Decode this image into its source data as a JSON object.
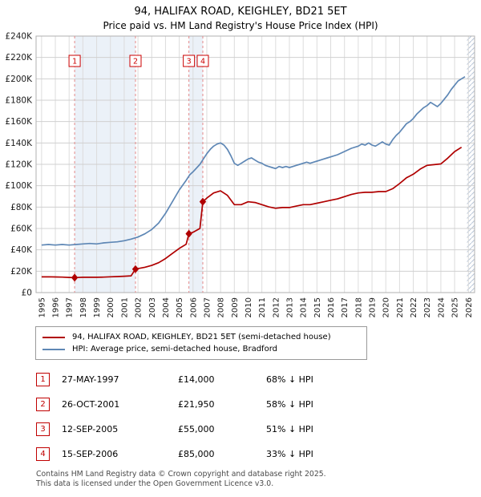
{
  "title": "94, HALIFAX ROAD, KEIGHLEY, BD21 5ET",
  "subtitle": "Price paid vs. HM Land Registry's House Price Index (HPI)",
  "chart_data": {
    "type": "line",
    "x_range": [
      1994.6,
      2026.45
    ],
    "y_range": [
      0,
      240000
    ],
    "x_ticks": [
      1995,
      1996,
      1997,
      1998,
      1999,
      2000,
      2001,
      2002,
      2003,
      2004,
      2005,
      2006,
      2007,
      2008,
      2009,
      2010,
      2011,
      2012,
      2013,
      2014,
      2015,
      2016,
      2017,
      2018,
      2019,
      2020,
      2021,
      2022,
      2023,
      2024,
      2025,
      2026
    ],
    "y_ticks": [
      0,
      20000,
      40000,
      60000,
      80000,
      100000,
      120000,
      140000,
      160000,
      180000,
      200000,
      220000,
      240000
    ],
    "y_tick_labels": [
      "£0",
      "£20K",
      "£40K",
      "£60K",
      "£80K",
      "£100K",
      "£120K",
      "£140K",
      "£160K",
      "£180K",
      "£200K",
      "£220K",
      "£240K"
    ],
    "band_color": "#dbe6f3",
    "hatch_start": 2025.9,
    "grid": true,
    "legend_position": "bottom",
    "series": [
      {
        "id": "series-line-property",
        "name": "94, HALIFAX ROAD, KEIGHLEY, BD21 5ET (semi-detached house)",
        "color": "#b00000",
        "x": [
          1995,
          1995.5,
          1996,
          1996.5,
          1997,
          1997.4,
          1998,
          1998.5,
          1999,
          1999.5,
          2000,
          2000.5,
          2001,
          2001.5,
          2001.82,
          2002,
          2002.5,
          2003,
          2003.5,
          2004,
          2004.5,
          2005,
          2005.5,
          2005.7,
          2006,
          2006.5,
          2006.71,
          2007,
          2007.5,
          2008,
          2008.5,
          2009,
          2009.5,
          2010,
          2010.5,
          2011,
          2011.5,
          2012,
          2012.5,
          2013,
          2013.5,
          2014,
          2014.5,
          2015,
          2015.5,
          2016,
          2016.5,
          2017,
          2017.5,
          2018,
          2018.5,
          2019,
          2019.5,
          2020,
          2020.5,
          2021,
          2021.5,
          2022,
          2022.5,
          2023,
          2023.5,
          2024,
          2024.5,
          2025,
          2025.5
        ],
        "y": [
          14700,
          14800,
          14600,
          14500,
          14200,
          14000,
          14300,
          14400,
          14300,
          14500,
          14800,
          15000,
          15300,
          15700,
          21950,
          22400,
          23700,
          25400,
          28000,
          31800,
          36600,
          41300,
          45200,
          55000,
          56500,
          60000,
          85000,
          88400,
          93200,
          95200,
          91000,
          82300,
          82300,
          85000,
          84300,
          82300,
          80200,
          78900,
          79600,
          79600,
          80900,
          82300,
          82300,
          83600,
          85000,
          86400,
          87700,
          89800,
          91800,
          93200,
          93800,
          93800,
          94500,
          94500,
          97200,
          102000,
          107400,
          110800,
          115600,
          119000,
          119700,
          120400,
          125800,
          131900,
          136000
        ]
      },
      {
        "id": "series-line-hpi",
        "name": "HPI: Average price, semi-detached house, Bradford",
        "color": "#5e87b5",
        "x": [
          1995,
          1995.5,
          1996,
          1996.5,
          1997,
          1997.5,
          1998,
          1998.5,
          1999,
          1999.5,
          2000,
          2000.5,
          2001,
          2001.5,
          2002,
          2002.5,
          2003,
          2003.5,
          2004,
          2004.5,
          2005,
          2005.5,
          2005.75,
          2006,
          2006.5,
          2006.75,
          2007,
          2007.25,
          2007.5,
          2007.75,
          2008,
          2008.25,
          2008.5,
          2008.75,
          2009,
          2009.25,
          2009.5,
          2009.75,
          2010,
          2010.25,
          2010.5,
          2010.75,
          2011,
          2011.25,
          2011.5,
          2011.75,
          2012,
          2012.25,
          2012.5,
          2012.75,
          2013,
          2013.25,
          2013.5,
          2013.75,
          2014,
          2014.25,
          2014.5,
          2014.75,
          2015,
          2015.25,
          2015.5,
          2015.75,
          2016,
          2016.5,
          2017,
          2017.5,
          2018,
          2018.25,
          2018.5,
          2018.75,
          2019,
          2019.25,
          2019.5,
          2019.75,
          2020,
          2020.25,
          2020.5,
          2020.75,
          2021,
          2021.25,
          2021.5,
          2021.75,
          2022,
          2022.25,
          2022.5,
          2022.75,
          2023,
          2023.25,
          2023.5,
          2023.75,
          2024,
          2024.25,
          2024.5,
          2024.75,
          2025,
          2025.25,
          2025.5,
          2025.75
        ],
        "y": [
          44500,
          45000,
          44500,
          45000,
          44500,
          45000,
          45500,
          46000,
          45500,
          46500,
          47000,
          47500,
          48500,
          50000,
          52000,
          55000,
          59000,
          65000,
          74000,
          85000,
          96000,
          105000,
          110000,
          113000,
          120000,
          125000,
          130000,
          134000,
          137000,
          139000,
          140000,
          138000,
          134000,
          128000,
          121000,
          119000,
          121000,
          123000,
          125000,
          126000,
          124000,
          122000,
          121000,
          119000,
          118000,
          117000,
          116000,
          118000,
          117000,
          118000,
          117000,
          118000,
          119000,
          120000,
          121000,
          122000,
          121000,
          122000,
          123000,
          124000,
          125000,
          126000,
          127000,
          129000,
          132000,
          135000,
          137000,
          139000,
          138000,
          140000,
          138000,
          137000,
          139000,
          141000,
          139000,
          138000,
          143000,
          147000,
          150000,
          154000,
          158000,
          160000,
          163000,
          167000,
          170000,
          173000,
          175000,
          178000,
          176000,
          174000,
          177000,
          181000,
          185000,
          190000,
          194000,
          198000,
          200000,
          202000
        ]
      }
    ],
    "sales": [
      {
        "label": "1",
        "x": 1997.4,
        "y": 14000
      },
      {
        "label": "2",
        "x": 2001.82,
        "y": 21950
      },
      {
        "label": "3",
        "x": 2005.7,
        "y": 55000
      },
      {
        "label": "4",
        "x": 2006.71,
        "y": 85000
      }
    ],
    "bands": [
      [
        1997.4,
        2001.82
      ],
      [
        2005.7,
        2006.71
      ]
    ]
  },
  "legend": [
    {
      "label": "94, HALIFAX ROAD, KEIGHLEY, BD21 5ET (semi-detached house)",
      "color": "#b00000"
    },
    {
      "label": "HPI: Average price, semi-detached house, Bradford",
      "color": "#5e87b5"
    }
  ],
  "transactions": [
    {
      "n": "1",
      "date": "27-MAY-1997",
      "price": "£14,000",
      "hpi": "68% ↓ HPI"
    },
    {
      "n": "2",
      "date": "26-OCT-2001",
      "price": "£21,950",
      "hpi": "58% ↓ HPI"
    },
    {
      "n": "3",
      "date": "12-SEP-2005",
      "price": "£55,000",
      "hpi": "51% ↓ HPI"
    },
    {
      "n": "4",
      "date": "15-SEP-2006",
      "price": "£85,000",
      "hpi": "33% ↓ HPI"
    }
  ],
  "footer": [
    "Contains HM Land Registry data © Crown copyright and database right 2025.",
    "This data is licensed under the Open Government Licence v3.0."
  ]
}
